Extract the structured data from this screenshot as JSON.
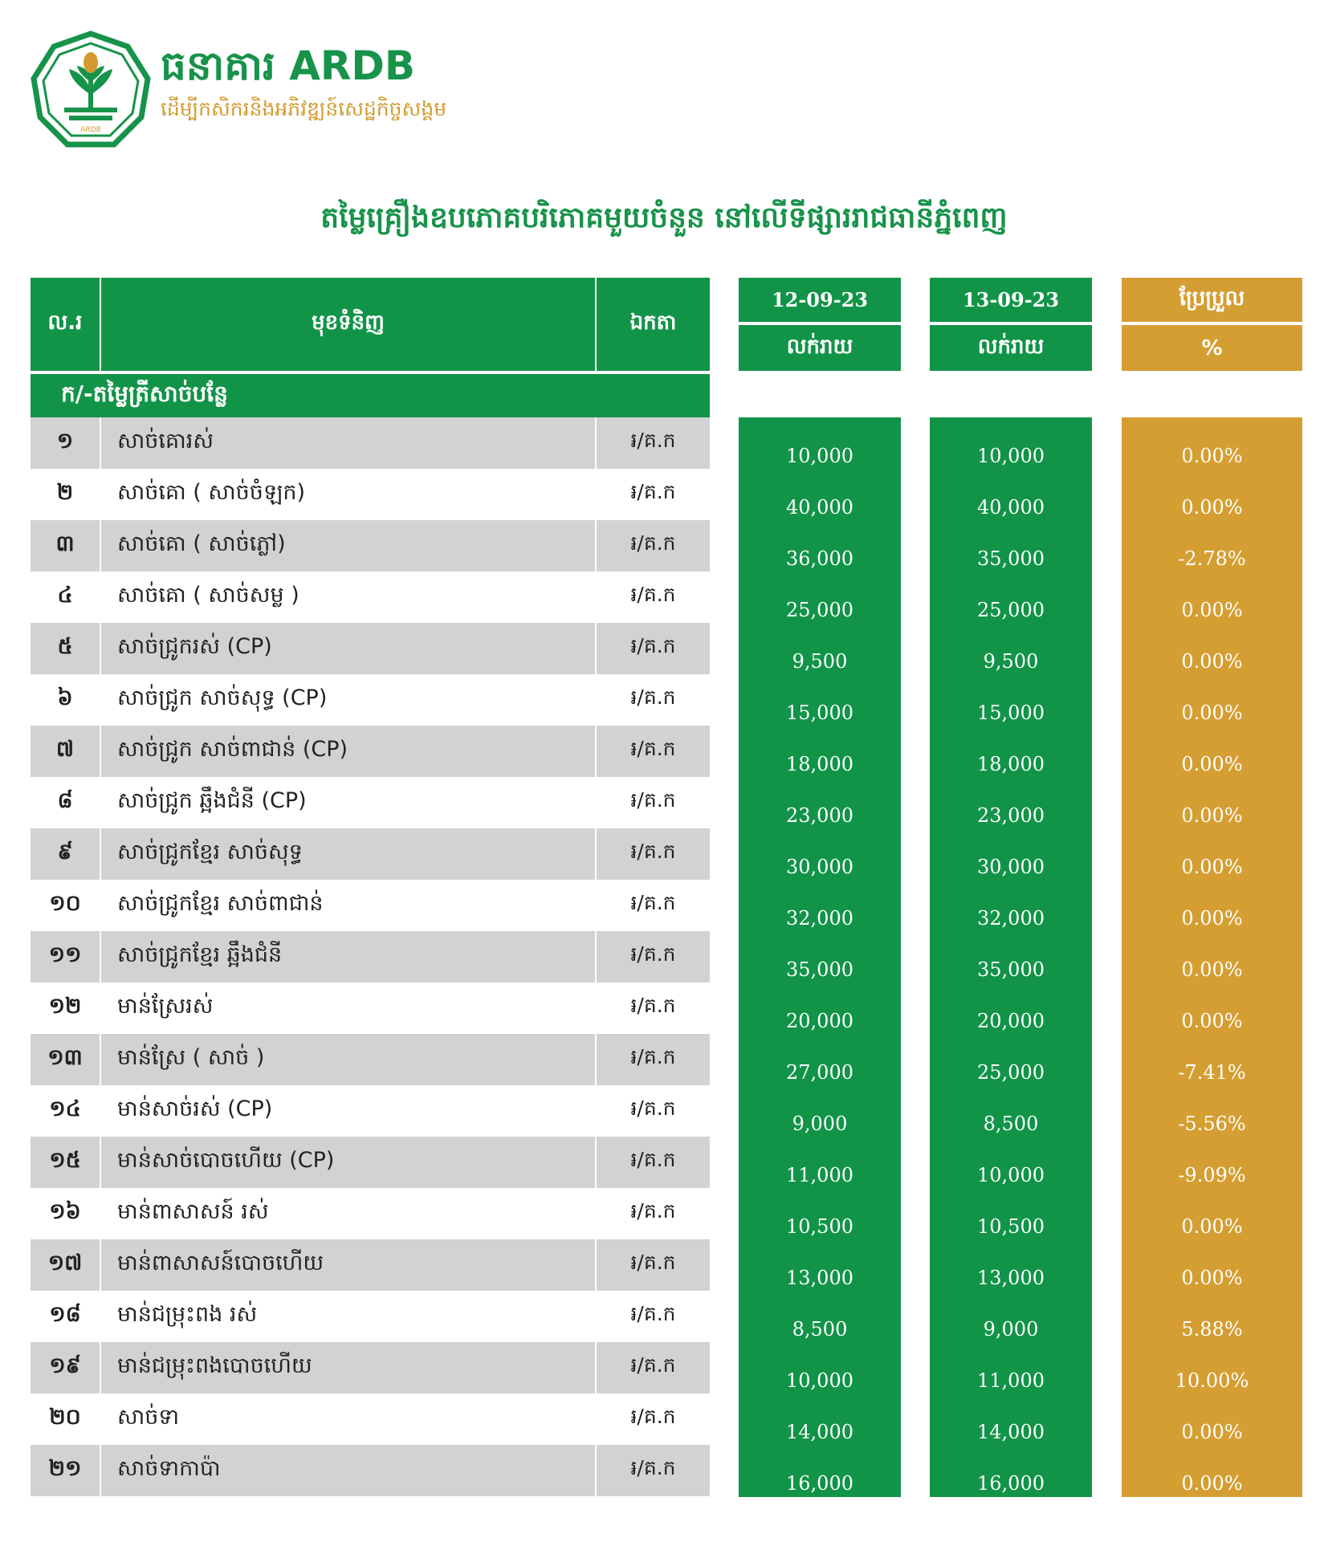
{
  "brand": {
    "name": "ធនាគារ ARDB",
    "tagline": "ដើម្បីកសិករនិងអភិវឌ្ឍន៍សេដ្ឋកិច្ចសង្គម",
    "logo_caption": "ARDB"
  },
  "title": "តម្លៃគ្រឿងឧបភោគបរិភោគមួយចំនួន នៅលើទីផ្សាររាជធានីភ្នំពេញ",
  "header": {
    "no": "ល.រ",
    "item": "មុខទំនិញ",
    "unit": "ឯកតា",
    "date1": "12-09-23",
    "date1_sub": "លក់រាយ",
    "date2": "13-09-23",
    "date2_sub": "លក់រាយ",
    "change": "ប្រែប្រួល",
    "change_sub": "%"
  },
  "section": "ក/-តម្លៃត្រីសាច់បន្លែ",
  "colors": {
    "green": "#119448",
    "gold": "#d59e32",
    "grey_row": "#d2d2d2"
  },
  "rows": [
    {
      "no": "១",
      "item": "សាច់គោរស់",
      "unit": "៛/គ.ក",
      "p1": "10,000",
      "p2": "10,000",
      "chg": "0.00%"
    },
    {
      "no": "២",
      "item": "សាច់គោ ( សាច់ចំឡក)",
      "unit": "៛/គ.ក",
      "p1": "40,000",
      "p2": "40,000",
      "chg": "0.00%"
    },
    {
      "no": "៣",
      "item": "សាច់គោ ( សាច់ភ្លៅ)",
      "unit": "៛/គ.ក",
      "p1": "36,000",
      "p2": "35,000",
      "chg": "-2.78%"
    },
    {
      "no": "៤",
      "item": "សាច់គោ ( សាច់សម្ល )",
      "unit": "៛/គ.ក",
      "p1": "25,000",
      "p2": "25,000",
      "chg": "0.00%"
    },
    {
      "no": "៥",
      "item": "សាច់ជ្រូករស់ (CP)",
      "unit": "៛/គ.ក",
      "p1": "9,500",
      "p2": "9,500",
      "chg": "0.00%"
    },
    {
      "no": "៦",
      "item": "សាច់ជ្រូក សាច់សុទ្ធ (CP)",
      "unit": "៛/គ.ក",
      "p1": "15,000",
      "p2": "15,000",
      "chg": "0.00%"
    },
    {
      "no": "៧",
      "item": "សាច់ជ្រូក សាច់ពាជាន់ (CP)",
      "unit": "៛/គ.ក",
      "p1": "18,000",
      "p2": "18,000",
      "chg": "0.00%"
    },
    {
      "no": "៨",
      "item": "សាច់ជ្រូក ឆ្អឹងជំនី (CP)",
      "unit": "៛/គ.ក",
      "p1": "23,000",
      "p2": "23,000",
      "chg": "0.00%"
    },
    {
      "no": "៩",
      "item": "សាច់ជ្រូកខ្មែរ សាច់សុទ្ធ",
      "unit": "៛/គ.ក",
      "p1": "30,000",
      "p2": "30,000",
      "chg": "0.00%"
    },
    {
      "no": "១០",
      "item": "សាច់ជ្រូកខ្មែរ សាច់ពាជាន់",
      "unit": "៛/គ.ក",
      "p1": "32,000",
      "p2": "32,000",
      "chg": "0.00%"
    },
    {
      "no": "១១",
      "item": "សាច់ជ្រូកខ្មែរ ឆ្អឹងជំនី",
      "unit": "៛/គ.ក",
      "p1": "35,000",
      "p2": "35,000",
      "chg": "0.00%"
    },
    {
      "no": "១២",
      "item": "មាន់ស្រែរស់",
      "unit": "៛/គ.ក",
      "p1": "20,000",
      "p2": "20,000",
      "chg": "0.00%"
    },
    {
      "no": "១៣",
      "item": "មាន់ស្រែ ( សាច់ )",
      "unit": "៛/គ.ក",
      "p1": "27,000",
      "p2": "25,000",
      "chg": "-7.41%"
    },
    {
      "no": "១៤",
      "item": "មាន់សាច់រស់ (CP)",
      "unit": "៛/គ.ក",
      "p1": "9,000",
      "p2": "8,500",
      "chg": "-5.56%"
    },
    {
      "no": "១៥",
      "item": "មាន់សាច់បោចហើយ (CP)",
      "unit": "៛/គ.ក",
      "p1": "11,000",
      "p2": "10,000",
      "chg": "-9.09%"
    },
    {
      "no": "១៦",
      "item": "មាន់ពាសាសន៍ រស់",
      "unit": "៛/គ.ក",
      "p1": "10,500",
      "p2": "10,500",
      "chg": "0.00%"
    },
    {
      "no": "១៧",
      "item": "មាន់ពាសាសន៍បោចហើយ",
      "unit": "៛/គ.ក",
      "p1": "13,000",
      "p2": "13,000",
      "chg": "0.00%"
    },
    {
      "no": "១៨",
      "item": "មាន់ជម្រុះពង រស់",
      "unit": "៛/គ.ក",
      "p1": "8,500",
      "p2": "9,000",
      "chg": "5.88%"
    },
    {
      "no": "១៩",
      "item": "មាន់ជម្រុះពងបោចហើយ",
      "unit": "៛/គ.ក",
      "p1": "10,000",
      "p2": "11,000",
      "chg": "10.00%"
    },
    {
      "no": "២០",
      "item": "សាច់ទា",
      "unit": "៛/គ.ក",
      "p1": "14,000",
      "p2": "14,000",
      "chg": "0.00%"
    },
    {
      "no": "២១",
      "item": "សាច់ទាកាប៉ា",
      "unit": "៛/គ.ក",
      "p1": "16,000",
      "p2": "16,000",
      "chg": "0.00%"
    }
  ]
}
